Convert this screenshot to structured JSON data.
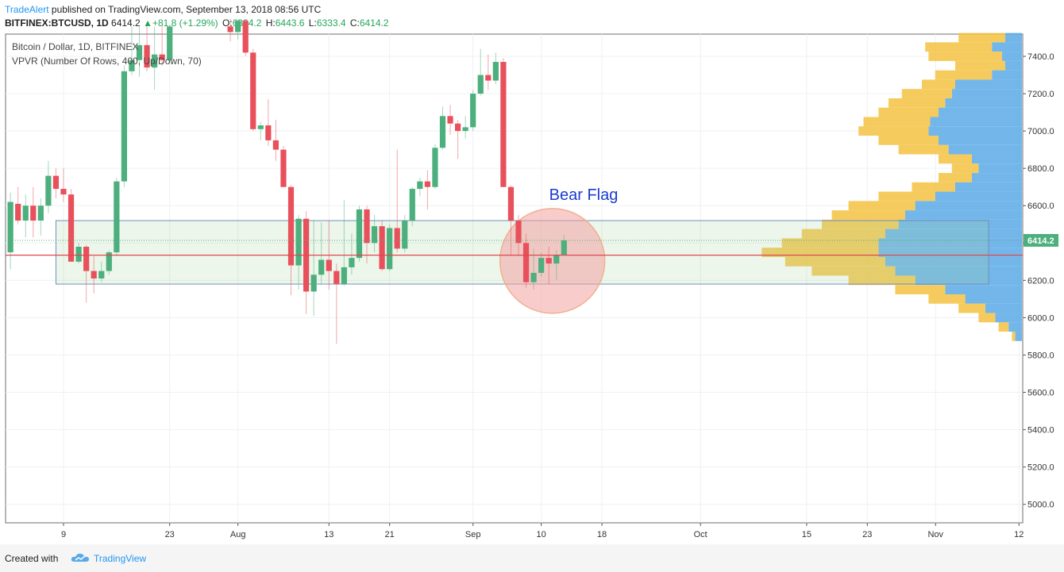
{
  "header": {
    "author": "TradeAlert",
    "published_text": "published on TradingView.com, September 13, 2018 08:56 UTC",
    "symbol": "BITFINEX:BTCUSD, 1D",
    "last": "6414.2",
    "change": "+81.8 (+1.29%)",
    "o_label": "O:",
    "o": "6334.2",
    "h_label": "H:",
    "h": "6443.6",
    "l_label": "L:",
    "l": "6333.4",
    "c_label": "C:",
    "c": "6414.2"
  },
  "legend": {
    "title": "Bitcoin / Dollar, 1D, BITFINEX",
    "indicator": "VPVR (Number Of Rows, 400, Up/Down, 70)"
  },
  "footer": {
    "created_with": "Created with",
    "brand": "TradingView"
  },
  "colors": {
    "up": "#4caf7d",
    "down": "#e8505b",
    "price_badge": "#4caf7d",
    "vp_up": "#5aa9e6",
    "vp_down": "#f5c242",
    "bear_circle": "#f4a3a3",
    "annotation_text": "#1a3bd1",
    "range_box": "#6f8fbf"
  },
  "chart_data": {
    "type": "candlestick",
    "symbol": "BITFINEX:BTCUSD",
    "interval": "1D",
    "ylim": [
      4900,
      7520
    ],
    "y_ticks": [
      5000,
      5200,
      5400,
      5600,
      5800,
      6000,
      6200,
      6400,
      6600,
      6800,
      7000,
      7200,
      7400
    ],
    "y_tick_labels": [
      "5000.0",
      "5200.0",
      "5400.0",
      "5600.0",
      "5800.0",
      "6000.0",
      "6200.0",
      "6400.0",
      "6600.0",
      "6800.0",
      "7000.0",
      "7200.0",
      "7400.0"
    ],
    "x_ticks": [
      {
        "date": "2018-07-09",
        "label": "9"
      },
      {
        "date": "2018-07-23",
        "label": "23"
      },
      {
        "date": "2018-08-01",
        "label": "Aug"
      },
      {
        "date": "2018-08-13",
        "label": "13"
      },
      {
        "date": "2018-08-21",
        "label": "21"
      },
      {
        "date": "2018-09-01",
        "label": "Sep"
      },
      {
        "date": "2018-09-10",
        "label": "10"
      },
      {
        "date": "2018-09-18",
        "label": "18"
      },
      {
        "date": "2018-10-01",
        "label": "Oct"
      },
      {
        "date": "2018-10-15",
        "label": "15"
      },
      {
        "date": "2018-10-23",
        "label": "23"
      },
      {
        "date": "2018-11-01",
        "label": "Nov"
      },
      {
        "date": "2018-11-12",
        "label": "12"
      }
    ],
    "candles": [
      {
        "date": "2018-07-02",
        "o": 6350,
        "h": 6670,
        "l": 6260,
        "c": 6620
      },
      {
        "date": "2018-07-03",
        "o": 6610,
        "h": 6700,
        "l": 6500,
        "c": 6520
      },
      {
        "date": "2018-07-04",
        "o": 6520,
        "h": 6660,
        "l": 6430,
        "c": 6600
      },
      {
        "date": "2018-07-05",
        "o": 6600,
        "h": 6700,
        "l": 6430,
        "c": 6520
      },
      {
        "date": "2018-07-06",
        "o": 6520,
        "h": 6640,
        "l": 6440,
        "c": 6600
      },
      {
        "date": "2018-07-07",
        "o": 6600,
        "h": 6840,
        "l": 6560,
        "c": 6760
      },
      {
        "date": "2018-07-08",
        "o": 6760,
        "h": 6800,
        "l": 6640,
        "c": 6690
      },
      {
        "date": "2018-07-09",
        "o": 6690,
        "h": 6800,
        "l": 6620,
        "c": 6660
      },
      {
        "date": "2018-07-10",
        "o": 6660,
        "h": 6690,
        "l": 6300,
        "c": 6300
      },
      {
        "date": "2018-07-11",
        "o": 6300,
        "h": 6400,
        "l": 6290,
        "c": 6380
      },
      {
        "date": "2018-07-12",
        "o": 6380,
        "h": 6390,
        "l": 6080,
        "c": 6250
      },
      {
        "date": "2018-07-13",
        "o": 6250,
        "h": 6330,
        "l": 6130,
        "c": 6210
      },
      {
        "date": "2018-07-14",
        "o": 6210,
        "h": 6300,
        "l": 6190,
        "c": 6250
      },
      {
        "date": "2018-07-15",
        "o": 6250,
        "h": 6360,
        "l": 6230,
        "c": 6350
      },
      {
        "date": "2018-07-16",
        "o": 6350,
        "h": 6750,
        "l": 6330,
        "c": 6730
      },
      {
        "date": "2018-07-17",
        "o": 6730,
        "h": 7350,
        "l": 6700,
        "c": 7320
      },
      {
        "date": "2018-07-18",
        "o": 7320,
        "h": 7560,
        "l": 7300,
        "c": 7380
      },
      {
        "date": "2018-07-19",
        "o": 7380,
        "h": 7560,
        "l": 7290,
        "c": 7460
      },
      {
        "date": "2018-07-20",
        "o": 7460,
        "h": 7560,
        "l": 7320,
        "c": 7340
      },
      {
        "date": "2018-07-21",
        "o": 7340,
        "h": 7560,
        "l": 7220,
        "c": 7410
      },
      {
        "date": "2018-07-22",
        "o": 7410,
        "h": 7560,
        "l": 7350,
        "c": 7380
      },
      {
        "date": "2018-07-23",
        "o": 7380,
        "h": 7560,
        "l": 7360,
        "c": 7560
      },
      {
        "date": "2018-07-31",
        "o": 7560,
        "h": 7600,
        "l": 7480,
        "c": 7530
      },
      {
        "date": "2018-08-01",
        "o": 7530,
        "h": 7600,
        "l": 7490,
        "c": 7590
      },
      {
        "date": "2018-08-02",
        "o": 7590,
        "h": 7600,
        "l": 7400,
        "c": 7420
      },
      {
        "date": "2018-08-03",
        "o": 7420,
        "h": 7440,
        "l": 7000,
        "c": 7010
      },
      {
        "date": "2018-08-04",
        "o": 7010,
        "h": 7050,
        "l": 6950,
        "c": 7030
      },
      {
        "date": "2018-08-05",
        "o": 7030,
        "h": 7170,
        "l": 6920,
        "c": 6950
      },
      {
        "date": "2018-08-06",
        "o": 6950,
        "h": 7060,
        "l": 6840,
        "c": 6900
      },
      {
        "date": "2018-08-07",
        "o": 6900,
        "h": 6920,
        "l": 6700,
        "c": 6700
      },
      {
        "date": "2018-08-08",
        "o": 6700,
        "h": 6710,
        "l": 6120,
        "c": 6280
      },
      {
        "date": "2018-08-09",
        "o": 6280,
        "h": 6550,
        "l": 6150,
        "c": 6530
      },
      {
        "date": "2018-08-10",
        "o": 6530,
        "h": 6570,
        "l": 6020,
        "c": 6140
      },
      {
        "date": "2018-08-11",
        "o": 6140,
        "h": 6520,
        "l": 6010,
        "c": 6230
      },
      {
        "date": "2018-08-12",
        "o": 6230,
        "h": 6510,
        "l": 6180,
        "c": 6310
      },
      {
        "date": "2018-08-13",
        "o": 6310,
        "h": 6520,
        "l": 6150,
        "c": 6250
      },
      {
        "date": "2018-08-14",
        "o": 6250,
        "h": 6290,
        "l": 5860,
        "c": 6180
      },
      {
        "date": "2018-08-15",
        "o": 6180,
        "h": 6630,
        "l": 6170,
        "c": 6270
      },
      {
        "date": "2018-08-16",
        "o": 6270,
        "h": 6450,
        "l": 6230,
        "c": 6320
      },
      {
        "date": "2018-08-17",
        "o": 6320,
        "h": 6600,
        "l": 6300,
        "c": 6580
      },
      {
        "date": "2018-08-18",
        "o": 6580,
        "h": 6600,
        "l": 6290,
        "c": 6400
      },
      {
        "date": "2018-08-19",
        "o": 6400,
        "h": 6550,
        "l": 6350,
        "c": 6490
      },
      {
        "date": "2018-08-20",
        "o": 6490,
        "h": 6520,
        "l": 6250,
        "c": 6260
      },
      {
        "date": "2018-08-21",
        "o": 6260,
        "h": 6500,
        "l": 6250,
        "c": 6480
      },
      {
        "date": "2018-08-22",
        "o": 6480,
        "h": 6900,
        "l": 6350,
        "c": 6370
      },
      {
        "date": "2018-08-23",
        "o": 6370,
        "h": 6550,
        "l": 6350,
        "c": 6520
      },
      {
        "date": "2018-08-24",
        "o": 6520,
        "h": 6700,
        "l": 6490,
        "c": 6690
      },
      {
        "date": "2018-08-25",
        "o": 6690,
        "h": 6750,
        "l": 6650,
        "c": 6730
      },
      {
        "date": "2018-08-26",
        "o": 6730,
        "h": 6790,
        "l": 6580,
        "c": 6700
      },
      {
        "date": "2018-08-27",
        "o": 6700,
        "h": 6930,
        "l": 6690,
        "c": 6910
      },
      {
        "date": "2018-08-28",
        "o": 6910,
        "h": 7130,
        "l": 6900,
        "c": 7080
      },
      {
        "date": "2018-08-29",
        "o": 7080,
        "h": 7140,
        "l": 6980,
        "c": 7040
      },
      {
        "date": "2018-08-30",
        "o": 7040,
        "h": 7060,
        "l": 6850,
        "c": 7000
      },
      {
        "date": "2018-08-31",
        "o": 7000,
        "h": 7080,
        "l": 6960,
        "c": 7020
      },
      {
        "date": "2018-09-01",
        "o": 7020,
        "h": 7220,
        "l": 7000,
        "c": 7200
      },
      {
        "date": "2018-09-02",
        "o": 7200,
        "h": 7440,
        "l": 7190,
        "c": 7300
      },
      {
        "date": "2018-09-03",
        "o": 7300,
        "h": 7410,
        "l": 7220,
        "c": 7270
      },
      {
        "date": "2018-09-04",
        "o": 7270,
        "h": 7420,
        "l": 7250,
        "c": 7370
      },
      {
        "date": "2018-09-05",
        "o": 7370,
        "h": 7390,
        "l": 6700,
        "c": 6700
      },
      {
        "date": "2018-09-06",
        "o": 6700,
        "h": 6710,
        "l": 6330,
        "c": 6520
      },
      {
        "date": "2018-09-07",
        "o": 6520,
        "h": 6550,
        "l": 6330,
        "c": 6400
      },
      {
        "date": "2018-09-08",
        "o": 6400,
        "h": 6450,
        "l": 6160,
        "c": 6190
      },
      {
        "date": "2018-09-09",
        "o": 6190,
        "h": 6370,
        "l": 6150,
        "c": 6240
      },
      {
        "date": "2018-09-10",
        "o": 6240,
        "h": 6350,
        "l": 6220,
        "c": 6320
      },
      {
        "date": "2018-09-11",
        "o": 6320,
        "h": 6380,
        "l": 6180,
        "c": 6290
      },
      {
        "date": "2018-09-12",
        "o": 6290,
        "h": 6360,
        "l": 6200,
        "c": 6334.2
      },
      {
        "date": "2018-09-13",
        "o": 6334.2,
        "h": 6443.6,
        "l": 6333.4,
        "c": 6414.2
      }
    ],
    "last_price": 6414.2,
    "last_price_label": "6414.2",
    "poc_price": 6335,
    "value_area": {
      "from_date": "2018-07-08",
      "to_date": "2018-11-08",
      "high": 6520,
      "low": 6180
    },
    "annotation": {
      "text": "Bear Flag",
      "date": "2018-09-10",
      "price": 6300
    },
    "volume_profile": {
      "type": "horizontal-histogram",
      "prices": [
        7500,
        7450,
        7400,
        7350,
        7300,
        7250,
        7200,
        7150,
        7100,
        7050,
        7000,
        6950,
        6900,
        6850,
        6800,
        6750,
        6700,
        6650,
        6600,
        6550,
        6500,
        6450,
        6400,
        6350,
        6300,
        6250,
        6200,
        6150,
        6100,
        6050,
        6000,
        5950,
        5900
      ],
      "up_volume": [
        0.1,
        0.18,
        0.12,
        0.1,
        0.18,
        0.4,
        0.42,
        0.46,
        0.5,
        0.55,
        0.56,
        0.5,
        0.44,
        0.3,
        0.26,
        0.3,
        0.4,
        0.52,
        0.64,
        0.7,
        0.74,
        0.82,
        0.86,
        0.86,
        0.82,
        0.76,
        0.64,
        0.46,
        0.34,
        0.22,
        0.16,
        0.08,
        0.04
      ],
      "down_volume": [
        0.28,
        0.4,
        0.44,
        0.3,
        0.34,
        0.2,
        0.3,
        0.34,
        0.36,
        0.4,
        0.42,
        0.36,
        0.3,
        0.2,
        0.16,
        0.2,
        0.26,
        0.34,
        0.4,
        0.44,
        0.46,
        0.5,
        0.58,
        0.7,
        0.6,
        0.5,
        0.4,
        0.3,
        0.22,
        0.16,
        0.1,
        0.06,
        0.02
      ]
    }
  }
}
